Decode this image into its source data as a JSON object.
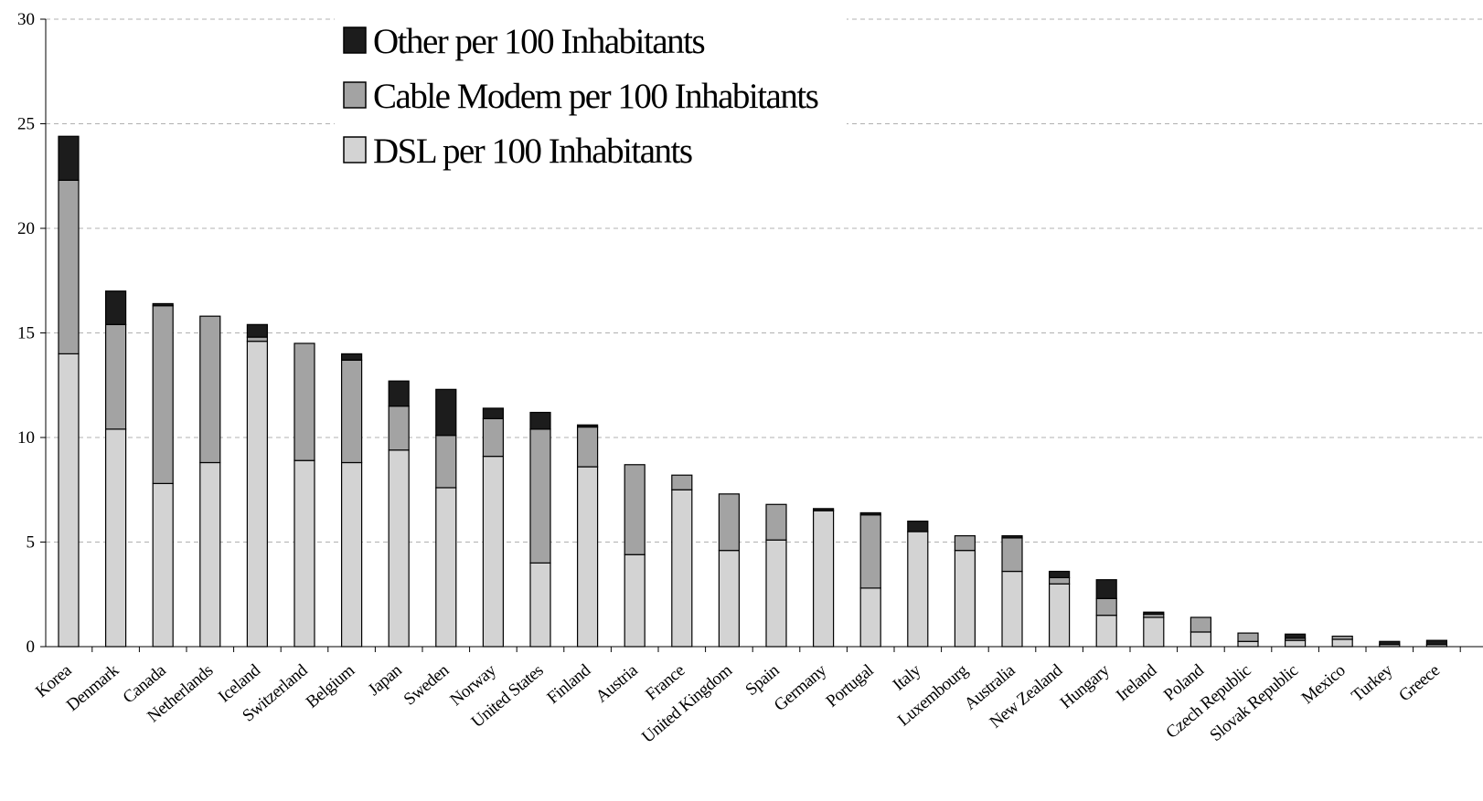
{
  "chart_data": {
    "type": "bar",
    "stacked": true,
    "title": "",
    "xlabel": "",
    "ylabel": "",
    "ylim": [
      0,
      30
    ],
    "yticks": [
      0,
      5,
      10,
      15,
      20,
      25,
      30
    ],
    "grid": true,
    "legend_position": "top-left",
    "categories": [
      "Korea",
      "Denmark",
      "Canada",
      "Netherlands",
      "Iceland",
      "Switzerland",
      "Belgium",
      "Japan",
      "Sweden",
      "Norway",
      "United States",
      "Finland",
      "Austria",
      "France",
      "United Kingdom",
      "Spain",
      "Germany",
      "Portugal",
      "Italy",
      "Luxembourg",
      "Australia",
      "New Zealand",
      "Hungary",
      "Ireland",
      "Poland",
      "Czech Republic",
      "Slovak Republic",
      "Mexico",
      "Turkey",
      "Greece"
    ],
    "series": [
      {
        "name": "DSL per 100 Inhabitants",
        "color": "#d3d3d3",
        "values": [
          14.0,
          10.4,
          7.8,
          8.8,
          14.6,
          8.9,
          8.8,
          9.4,
          7.6,
          9.1,
          4.0,
          8.6,
          4.4,
          7.5,
          4.6,
          5.1,
          6.5,
          2.8,
          5.5,
          4.6,
          3.6,
          3.0,
          1.5,
          1.4,
          0.7,
          0.25,
          0.3,
          0.35,
          0.1,
          0.1
        ]
      },
      {
        "name": "Cable Modem per 100 Inhabitants",
        "color": "#a3a3a3",
        "values": [
          8.3,
          5.0,
          8.5,
          7.0,
          0.2,
          5.6,
          4.9,
          2.1,
          2.5,
          1.8,
          6.4,
          1.9,
          4.3,
          0.7,
          2.7,
          1.7,
          0.0,
          3.5,
          0.0,
          0.7,
          1.6,
          0.3,
          0.8,
          0.15,
          0.7,
          0.4,
          0.1,
          0.15,
          0.0,
          0.0
        ]
      },
      {
        "name": "Other per 100 Inhabitants",
        "color": "#1c1c1c",
        "values": [
          2.1,
          1.6,
          0.1,
          0.0,
          0.6,
          0.0,
          0.3,
          1.2,
          2.2,
          0.5,
          0.8,
          0.1,
          0.0,
          0.0,
          0.0,
          0.0,
          0.1,
          0.1,
          0.5,
          0.0,
          0.1,
          0.3,
          0.9,
          0.1,
          0.0,
          0.0,
          0.2,
          0.0,
          0.15,
          0.2
        ]
      }
    ]
  }
}
